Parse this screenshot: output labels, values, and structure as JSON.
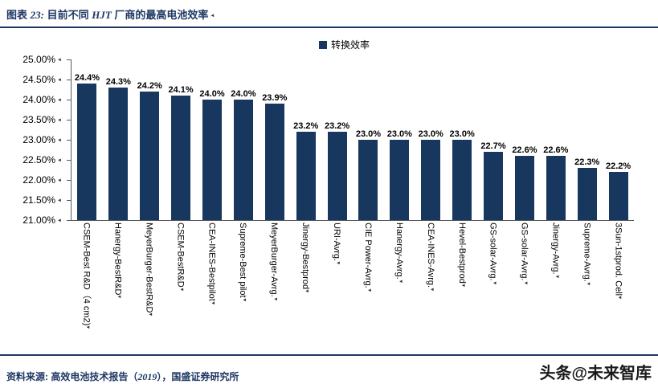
{
  "header": {
    "prefix": "图表 ",
    "number": "23:",
    "title_part1": " 目前不同 ",
    "title_hjt": "HJT",
    "title_part2": " 厂商的最高电池效率"
  },
  "marks": {
    "return_mark": "◄"
  },
  "colors": {
    "accent": "#1F3864",
    "axis": "#595959"
  },
  "chart_data": {
    "type": "bar",
    "title": "目前不同 HJT 厂商的最高电池效率",
    "legend": "转换效率",
    "legend_position": "top",
    "grid": false,
    "bar_color": "#17375E",
    "ylim": [
      21.0,
      25.0
    ],
    "ytick_step": 0.5,
    "yticks": [
      "25.00%",
      "24.50%",
      "24.00%",
      "23.50%",
      "23.00%",
      "22.50%",
      "22.00%",
      "21.50%",
      "21.00%"
    ],
    "categories": [
      "CSEM-Best R&D（4 cm2)",
      "Hanergy-BestR&D",
      "MeyerBurger-BestR&D",
      "CSEM-BestR&D",
      "CEA-INES-Bestpilot",
      "Supreme-Best pilot",
      "MeyerBurger-Avrg.",
      "Jinergy-Bestprod",
      "URI-Avrg.",
      "CIE Power-Avrg.",
      "Hanergy-Avrg.",
      "CEA-INES-Avrg.",
      "Hevel-Bestprod",
      "GS-solar-Avrg.",
      "GS-solar-Avrg.",
      "Jinergy-Avrg.",
      "Supreme-Avrg.",
      "3Sun-1stprod. Cell"
    ],
    "values": [
      24.4,
      24.3,
      24.2,
      24.1,
      24.0,
      24.0,
      23.9,
      23.2,
      23.2,
      23.0,
      23.0,
      23.0,
      23.0,
      22.7,
      22.6,
      22.6,
      22.3,
      22.2
    ],
    "value_labels": [
      "24.4%",
      "24.3%",
      "24.2%",
      "24.1%",
      "24.0%",
      "24.0%",
      "23.9%",
      "23.2%",
      "23.2%",
      "23.0%",
      "23.0%",
      "23.0%",
      "23.0%",
      "22.7%",
      "22.6%",
      "22.6%",
      "22.3%",
      "22.2%"
    ]
  },
  "footer": {
    "source_part1": "资料来源: 高效电池技术报告（",
    "source_year": "2019",
    "source_part2": "），国盛证券研究所",
    "watermark": "头条@未来智库"
  }
}
